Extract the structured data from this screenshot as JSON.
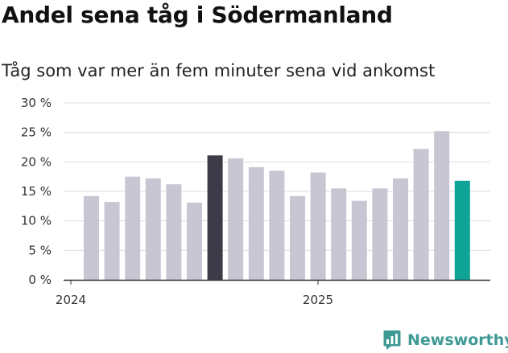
{
  "title": "Andel sena tåg i Södermanland",
  "subtitle": "Tåg som var mer än fem minuter sena vid ankomst",
  "brand": {
    "name": "Newsworthy",
    "icon": "bar-chart-speech-bubble-icon"
  },
  "colors": {
    "default": "#c8c6d2",
    "highlight": "#3d3b47",
    "latest": "#0ea394"
  },
  "chart_data": {
    "type": "bar",
    "title": "Andel sena tåg i Södermanland",
    "subtitle": "Tåg som var mer än fem minuter sena vid ankomst",
    "ylim": [
      0,
      30
    ],
    "yticks": [
      0,
      5,
      10,
      15,
      20,
      25,
      30
    ],
    "ytick_labels": [
      "0 %",
      "5 %",
      "10 %",
      "15 %",
      "20 %",
      "25 %",
      "30 %"
    ],
    "xtick_labels": [
      "2024",
      "2025"
    ],
    "grid": true,
    "values": [
      14.2,
      13.2,
      17.5,
      17.2,
      16.2,
      13.1,
      21.1,
      20.6,
      19.1,
      18.5,
      14.2,
      18.2,
      15.5,
      13.4,
      15.5,
      17.2,
      22.2,
      25.2,
      16.8
    ],
    "bar_colors": [
      "default",
      "default",
      "default",
      "default",
      "default",
      "default",
      "highlight",
      "default",
      "default",
      "default",
      "default",
      "default",
      "default",
      "default",
      "default",
      "default",
      "default",
      "default",
      "latest"
    ]
  }
}
